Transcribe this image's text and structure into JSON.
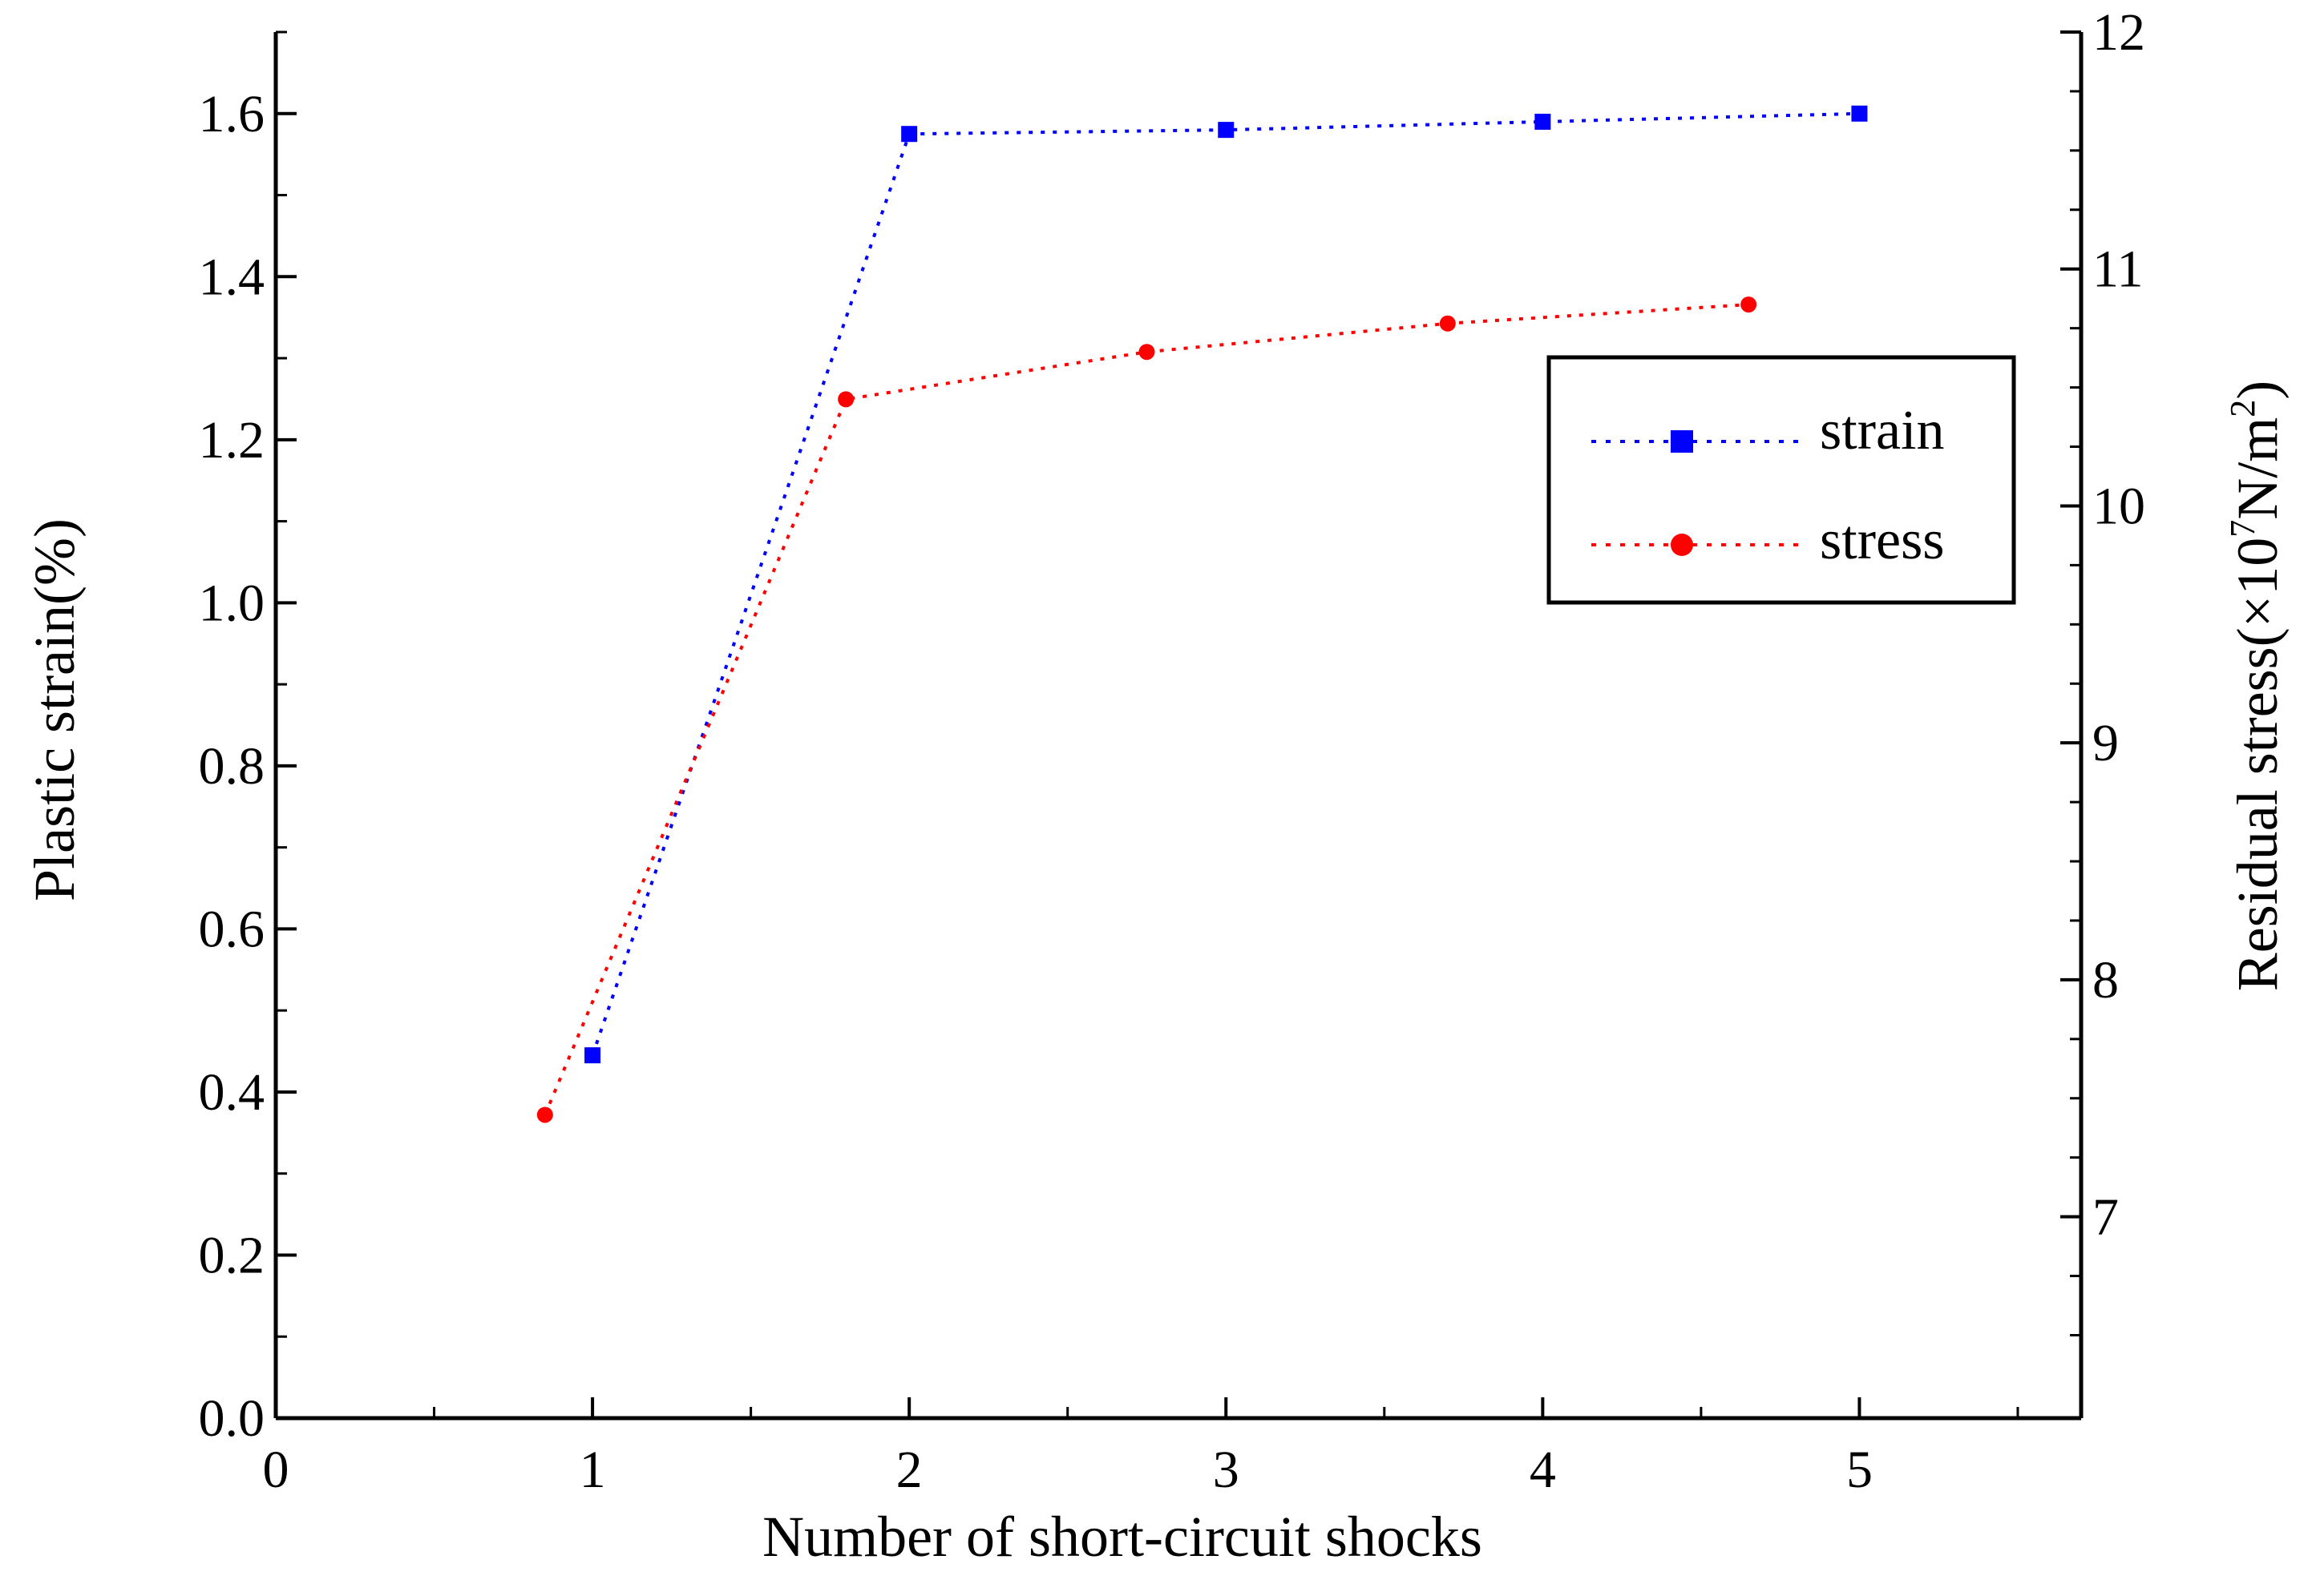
{
  "chart_data": {
    "type": "line",
    "title": "",
    "xlabel": "Number of short-circuit shocks",
    "ylabel": "Plastic strain(%)",
    "ylabel_right": {
      "prefix": "Residual stress(×10",
      "exp": "7",
      "mid": "N/m",
      "exp2": "2",
      "suffix": ")"
    },
    "xlim": [
      0,
      5.7
    ],
    "ylim": [
      0,
      1.7
    ],
    "ylim_right": [
      6.15,
      12
    ],
    "x_ticks": [
      {
        "value": 0,
        "label": "0"
      },
      {
        "value": 1,
        "label": "1"
      },
      {
        "value": 2,
        "label": "2"
      },
      {
        "value": 3,
        "label": "3"
      },
      {
        "value": 4,
        "label": "4"
      },
      {
        "value": 5,
        "label": "5"
      }
    ],
    "y_ticks": [
      {
        "value": 0.0,
        "label": "0.0"
      },
      {
        "value": 0.2,
        "label": "0.2"
      },
      {
        "value": 0.4,
        "label": "0.4"
      },
      {
        "value": 0.6,
        "label": "0.6"
      },
      {
        "value": 0.8,
        "label": "0.8"
      },
      {
        "value": 1.0,
        "label": "1.0"
      },
      {
        "value": 1.2,
        "label": "1.2"
      },
      {
        "value": 1.4,
        "label": "1.4"
      },
      {
        "value": 1.6,
        "label": "1.6"
      }
    ],
    "y_right_ticks": [
      {
        "value": 7,
        "label": "7"
      },
      {
        "value": 8,
        "label": "8"
      },
      {
        "value": 9,
        "label": "9"
      },
      {
        "value": 10,
        "label": "10"
      },
      {
        "value": 11,
        "label": "11"
      },
      {
        "value": 12,
        "label": "12"
      }
    ],
    "series": [
      {
        "name": "strain",
        "axis": "left",
        "color": "#0000ff",
        "marker": "square",
        "x": [
          1,
          2,
          3,
          4,
          5
        ],
        "y": [
          0.445,
          1.575,
          1.58,
          1.59,
          1.6
        ]
      },
      {
        "name": "stress",
        "axis": "right",
        "color": "#ff0000",
        "marker": "circle",
        "x": [
          0.85,
          1.8,
          2.75,
          3.7,
          4.65
        ],
        "y": [
          7.43,
          10.45,
          10.65,
          10.77,
          10.85
        ]
      }
    ],
    "legend": {
      "position": "top-right",
      "labels": [
        "strain",
        "stress"
      ]
    }
  }
}
